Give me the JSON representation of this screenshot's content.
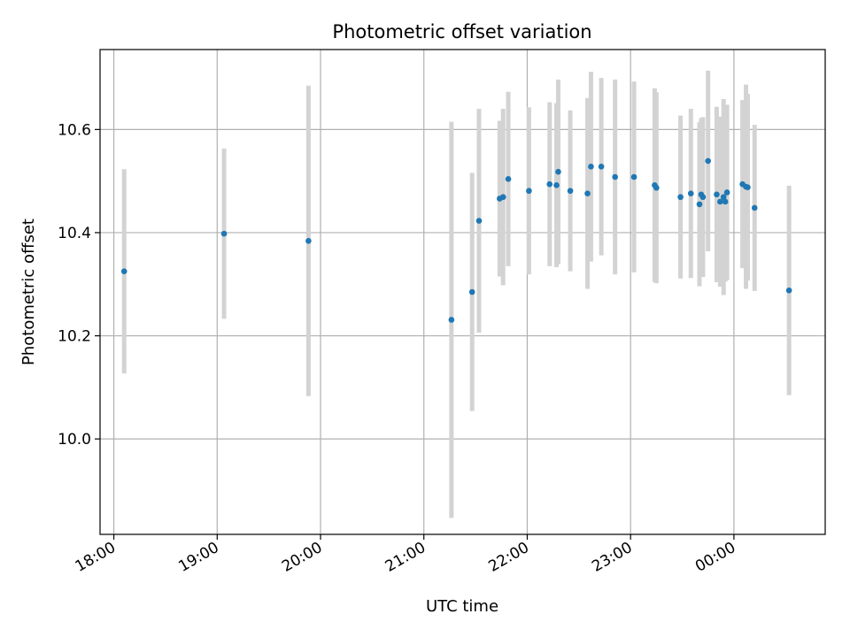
{
  "chart_data": {
    "type": "scatter",
    "title": "Photometric offset variation",
    "xlabel": "UTC time",
    "ylabel": "Photometric offset",
    "x_axis_kind": "time",
    "xlim": [
      "17:52",
      "00:53"
    ],
    "ylim": [
      9.815,
      10.755
    ],
    "grid": true,
    "x_ticks": [
      "18:00",
      "19:00",
      "20:00",
      "21:00",
      "22:00",
      "23:00",
      "00:00"
    ],
    "y_ticks": [
      "10.0",
      "10.2",
      "10.4",
      "10.6"
    ],
    "point_color": "#1f77b4",
    "errorbar_color": "#d3d3d3",
    "points": [
      {
        "x": "18:06",
        "y": 10.325,
        "err": 0.198
      },
      {
        "x": "19:04",
        "y": 10.398,
        "err": 0.165
      },
      {
        "x": "19:53",
        "y": 10.384,
        "err": 0.301
      },
      {
        "x": "21:16",
        "y": 10.231,
        "err": 0.384
      },
      {
        "x": "21:28",
        "y": 10.285,
        "err": 0.231
      },
      {
        "x": "21:32",
        "y": 10.423,
        "err": 0.217
      },
      {
        "x": "21:44",
        "y": 10.466,
        "err": 0.151
      },
      {
        "x": "21:46",
        "y": 10.469,
        "err": 0.171
      },
      {
        "x": "21:49",
        "y": 10.504,
        "err": 0.169
      },
      {
        "x": "22:01",
        "y": 10.481,
        "err": 0.162
      },
      {
        "x": "22:13",
        "y": 10.494,
        "err": 0.159
      },
      {
        "x": "22:17",
        "y": 10.492,
        "err": 0.159
      },
      {
        "x": "22:18",
        "y": 10.518,
        "err": 0.179
      },
      {
        "x": "22:25",
        "y": 10.481,
        "err": 0.156
      },
      {
        "x": "22:35",
        "y": 10.476,
        "err": 0.185
      },
      {
        "x": "22:37",
        "y": 10.528,
        "err": 0.184
      },
      {
        "x": "22:43",
        "y": 10.528,
        "err": 0.172
      },
      {
        "x": "22:51",
        "y": 10.508,
        "err": 0.189
      },
      {
        "x": "23:02",
        "y": 10.508,
        "err": 0.185
      },
      {
        "x": "23:14",
        "y": 10.492,
        "err": 0.188
      },
      {
        "x": "23:15",
        "y": 10.487,
        "err": 0.185
      },
      {
        "x": "23:29",
        "y": 10.469,
        "err": 0.158
      },
      {
        "x": "23:35",
        "y": 10.476,
        "err": 0.164
      },
      {
        "x": "23:40",
        "y": 10.455,
        "err": 0.159
      },
      {
        "x": "23:41",
        "y": 10.474,
        "err": 0.148
      },
      {
        "x": "23:42",
        "y": 10.469,
        "err": 0.155
      },
      {
        "x": "23:45",
        "y": 10.539,
        "err": 0.175
      },
      {
        "x": "23:50",
        "y": 10.474,
        "err": 0.17
      },
      {
        "x": "23:52",
        "y": 10.46,
        "err": 0.165
      },
      {
        "x": "23:54",
        "y": 10.469,
        "err": 0.19
      },
      {
        "x": "23:55",
        "y": 10.46,
        "err": 0.155
      },
      {
        "x": "23:56",
        "y": 10.478,
        "err": 0.17
      },
      {
        "x": "00:05",
        "y": 10.494,
        "err": 0.163
      },
      {
        "x": "00:07",
        "y": 10.489,
        "err": 0.198
      },
      {
        "x": "00:08",
        "y": 10.488,
        "err": 0.181
      },
      {
        "x": "00:12",
        "y": 10.448,
        "err": 0.161
      },
      {
        "x": "00:32",
        "y": 10.288,
        "err": 0.203
      }
    ]
  }
}
